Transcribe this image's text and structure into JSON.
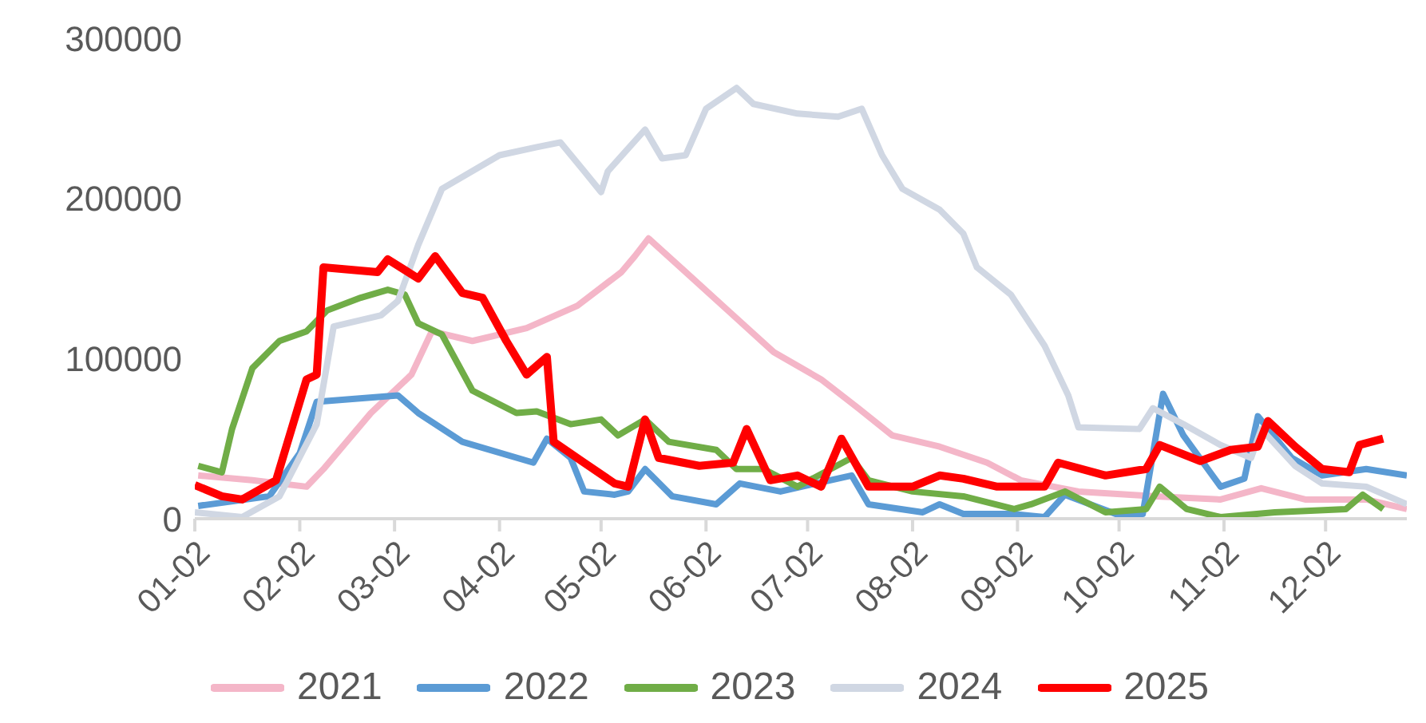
{
  "chart_data": {
    "type": "line",
    "xlim": [
      "--01-02",
      "--12-26"
    ],
    "xticks": [
      {
        "value": "--01-02",
        "label": "01-02"
      },
      {
        "value": "--02-02",
        "label": "02-02"
      },
      {
        "value": "--03-02",
        "label": "03-02"
      },
      {
        "value": "--04-02",
        "label": "04-02"
      },
      {
        "value": "--05-02",
        "label": "05-02"
      },
      {
        "value": "--06-02",
        "label": "06-02"
      },
      {
        "value": "--07-02",
        "label": "07-02"
      },
      {
        "value": "--08-02",
        "label": "08-02"
      },
      {
        "value": "--09-02",
        "label": "09-02"
      },
      {
        "value": "--10-02",
        "label": "10-02"
      },
      {
        "value": "--11-02",
        "label": "11-02"
      },
      {
        "value": "--12-02",
        "label": "12-02"
      }
    ],
    "ylim": [
      0,
      300000
    ],
    "yticks": [
      0,
      100000,
      200000,
      300000
    ],
    "grid": false,
    "legend": "bottom",
    "marker": "none",
    "line_style": "solid",
    "series": [
      {
        "name": "2021",
        "color": "#f4b6c8",
        "x": [
          "--01-03",
          "--01-19",
          "--02-04",
          "--02-09",
          "--02-23",
          "--03-07",
          "--03-13",
          "--03-25",
          "--04-10",
          "--04-25",
          "--05-08",
          "--05-12",
          "--05-16",
          "--05-27",
          "--06-09",
          "--06-22",
          "--07-06",
          "--07-17",
          "--07-27",
          "--08-10",
          "--08-24",
          "--09-03",
          "--09-20",
          "--10-13",
          "--11-01",
          "--11-13",
          "--11-26",
          "--12-14",
          "--12-26"
        ],
        "values": [
          27000,
          24000,
          20000,
          31000,
          66000,
          90000,
          117000,
          111000,
          119000,
          133000,
          154000,
          164000,
          175000,
          154000,
          129000,
          104000,
          87000,
          69000,
          52000,
          45000,
          35000,
          24000,
          17000,
          14000,
          12000,
          19000,
          12000,
          12000,
          6000
        ]
      },
      {
        "name": "2022",
        "color": "#5b9bd5",
        "x": [
          "--01-03",
          "--01-24",
          "--02-02",
          "--02-07",
          "--03-03",
          "--03-09",
          "--03-22",
          "--04-12",
          "--04-16",
          "--04-23",
          "--04-27",
          "--05-06",
          "--05-10",
          "--05-15",
          "--05-23",
          "--06-05",
          "--06-12",
          "--06-24",
          "--07-15",
          "--07-20",
          "--08-05",
          "--08-10",
          "--08-17",
          "--08-31",
          "--09-10",
          "--09-16",
          "--10-01",
          "--10-09",
          "--10-15",
          "--10-21",
          "--11-01",
          "--11-08",
          "--11-12",
          "--11-22",
          "--12-01",
          "--12-14",
          "--12-26"
        ],
        "values": [
          8000,
          14000,
          41000,
          73000,
          77000,
          66000,
          48000,
          35000,
          50000,
          38000,
          17000,
          15000,
          17000,
          31000,
          14000,
          9000,
          22000,
          17000,
          27000,
          9000,
          4000,
          9000,
          3000,
          3000,
          1000,
          15000,
          3000,
          3000,
          78000,
          52000,
          20000,
          25000,
          64000,
          38000,
          27000,
          31000,
          27000
        ]
      },
      {
        "name": "2023",
        "color": "#70ad47",
        "x": [
          "--01-03",
          "--01-10",
          "--01-13",
          "--01-19",
          "--01-27",
          "--02-04",
          "--02-10",
          "--02-20",
          "--02-28",
          "--03-05",
          "--03-09",
          "--03-16",
          "--03-25",
          "--04-07",
          "--04-13",
          "--04-23",
          "--05-02",
          "--05-07",
          "--05-15",
          "--05-22",
          "--06-05",
          "--06-11",
          "--06-19",
          "--06-29",
          "--07-15",
          "--07-20",
          "--08-02",
          "--08-17",
          "--09-01",
          "--09-06",
          "--09-16",
          "--09-28",
          "--10-10",
          "--10-14",
          "--10-22",
          "--11-01",
          "--11-17",
          "--12-08",
          "--12-13",
          "--12-19"
        ],
        "values": [
          33000,
          29000,
          56000,
          94000,
          111000,
          117000,
          130000,
          138000,
          143000,
          140000,
          122000,
          115000,
          80000,
          66000,
          67000,
          59000,
          62000,
          52000,
          62000,
          48000,
          43000,
          31000,
          31000,
          20000,
          38000,
          24000,
          17000,
          14000,
          6000,
          9000,
          17000,
          4000,
          6000,
          20000,
          6000,
          1000,
          4000,
          6000,
          15000,
          6000
        ]
      },
      {
        "name": "2024",
        "color": "#d0d7e3",
        "x": [
          "--01-02",
          "--01-16",
          "--01-27",
          "--02-07",
          "--02-12",
          "--02-26",
          "--03-03",
          "--03-09",
          "--03-16",
          "--04-02",
          "--04-13",
          "--04-20",
          "--04-27",
          "--05-02",
          "--05-04",
          "--05-15",
          "--05-20",
          "--05-27",
          "--06-02",
          "--06-11",
          "--06-16",
          "--06-29",
          "--07-11",
          "--07-18",
          "--07-24",
          "--07-30",
          "--08-10",
          "--08-17",
          "--08-21",
          "--08-31",
          "--09-10",
          "--09-17",
          "--09-20",
          "--10-08",
          "--10-12",
          "--10-21",
          "--11-01",
          "--11-10",
          "--11-13",
          "--11-23",
          "--12-01",
          "--12-14",
          "--12-26"
        ],
        "values": [
          4000,
          1000,
          14000,
          59000,
          120000,
          127000,
          136000,
          171000,
          206000,
          227000,
          232000,
          235000,
          217000,
          204000,
          217000,
          243000,
          225000,
          227000,
          256000,
          269000,
          259000,
          253000,
          251000,
          256000,
          227000,
          206000,
          193000,
          178000,
          157000,
          140000,
          108000,
          77000,
          57000,
          56000,
          69000,
          59000,
          46000,
          38000,
          56000,
          33000,
          22000,
          20000,
          9000
        ]
      },
      {
        "name": "2025",
        "color": "#ff0000",
        "x": [
          "--01-02",
          "--01-10",
          "--01-16",
          "--01-26",
          "--01-31",
          "--02-04",
          "--02-07",
          "--02-09",
          "--02-25",
          "--02-28",
          "--03-09",
          "--03-14",
          "--03-22",
          "--03-28",
          "--04-04",
          "--04-10",
          "--04-16",
          "--04-18",
          "--04-27",
          "--05-06",
          "--05-10",
          "--05-15",
          "--05-19",
          "--05-31",
          "--06-10",
          "--06-14",
          "--06-21",
          "--06-29",
          "--07-06",
          "--07-12",
          "--07-20",
          "--08-02",
          "--08-10",
          "--08-17",
          "--08-27",
          "--09-10",
          "--09-14",
          "--09-28",
          "--10-10",
          "--10-14",
          "--10-26",
          "--11-04",
          "--11-12",
          "--11-15",
          "--11-23",
          "--12-01",
          "--12-09",
          "--12-12",
          "--12-19"
        ],
        "values": [
          21000,
          14000,
          12000,
          24000,
          59000,
          87000,
          90000,
          157000,
          154000,
          162000,
          150000,
          164000,
          141000,
          138000,
          111000,
          90000,
          101000,
          48000,
          35000,
          22000,
          20000,
          62000,
          38000,
          33000,
          35000,
          56000,
          24000,
          27000,
          20000,
          50000,
          20000,
          20000,
          27000,
          25000,
          20000,
          20000,
          35000,
          27000,
          31000,
          46000,
          36000,
          43000,
          45000,
          61000,
          45000,
          31000,
          29000,
          46000,
          50000
        ]
      }
    ]
  }
}
